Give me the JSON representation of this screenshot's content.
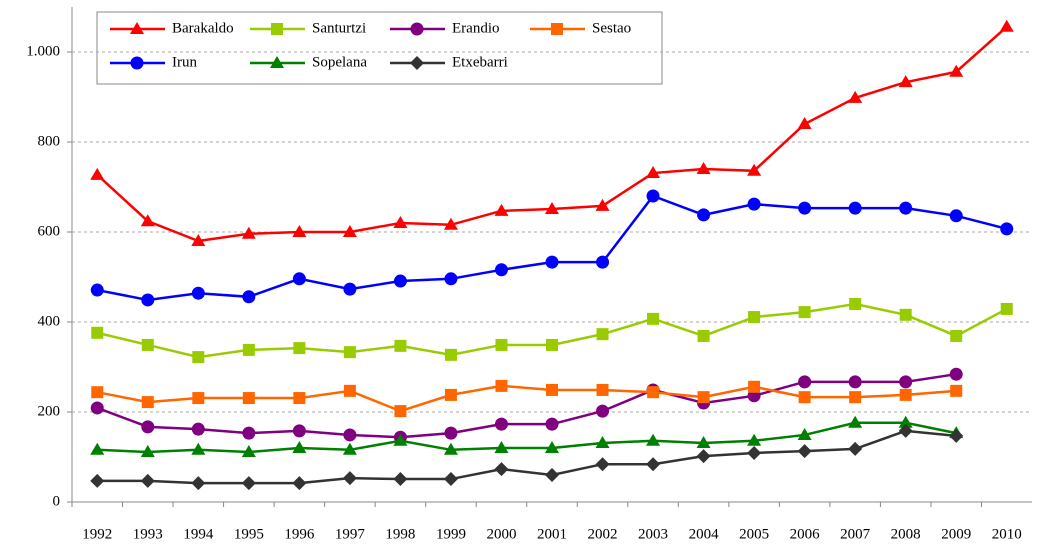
{
  "chart_data": {
    "type": "line",
    "categories": [
      "1992",
      "1993",
      "1994",
      "1995",
      "1996",
      "1997",
      "1998",
      "1999",
      "2000",
      "2001",
      "2002",
      "2003",
      "2004",
      "2005",
      "2006",
      "2007",
      "2008",
      "2009",
      "2010"
    ],
    "series": [
      {
        "name": "Barakaldo",
        "color": "#ff0000",
        "marker": "triangle",
        "values": [
          727,
          624,
          580,
          596,
          600,
          600,
          620,
          616,
          647,
          651,
          658,
          731,
          740,
          736,
          840,
          898,
          933,
          956,
          1056
        ]
      },
      {
        "name": "Santurtzi",
        "color": "#99cc00",
        "marker": "square",
        "values": [
          376,
          349,
          322,
          338,
          342,
          333,
          347,
          327,
          349,
          349,
          373,
          407,
          369,
          411,
          422,
          440,
          416,
          369,
          429
        ]
      },
      {
        "name": "Erandio",
        "color": "#800080",
        "marker": "circle",
        "values": [
          209,
          167,
          162,
          153,
          158,
          149,
          144,
          153,
          173,
          173,
          202,
          249,
          220,
          236,
          267,
          267,
          267,
          284,
          null
        ]
      },
      {
        "name": "Sestao",
        "color": "#ff6600",
        "marker": "square",
        "values": [
          244,
          222,
          231,
          231,
          231,
          247,
          202,
          238,
          258,
          249,
          249,
          244,
          233,
          256,
          233,
          233,
          238,
          247,
          null
        ]
      },
      {
        "name": "Irun",
        "color": "#0000ff",
        "marker": "circle",
        "values": [
          471,
          449,
          464,
          456,
          496,
          473,
          491,
          496,
          516,
          533,
          533,
          680,
          638,
          662,
          653,
          653,
          653,
          636,
          607
        ]
      },
      {
        "name": "Sopelana",
        "color": "#008000",
        "marker": "triangle",
        "values": [
          116,
          111,
          116,
          111,
          120,
          116,
          136,
          116,
          120,
          120,
          131,
          136,
          131,
          136,
          149,
          176,
          176,
          153,
          null
        ]
      },
      {
        "name": "Etxebarri",
        "color": "#333333",
        "marker": "diamond",
        "values": [
          47,
          47,
          42,
          42,
          42,
          53,
          51,
          51,
          73,
          60,
          84,
          84,
          102,
          109,
          113,
          118,
          158,
          147,
          null
        ]
      }
    ],
    "ylim": [
      0,
      1100
    ],
    "yticks": [
      0,
      200,
      400,
      600,
      800,
      {
        "value": 1000,
        "label": "1.000"
      }
    ],
    "grid": true
  }
}
